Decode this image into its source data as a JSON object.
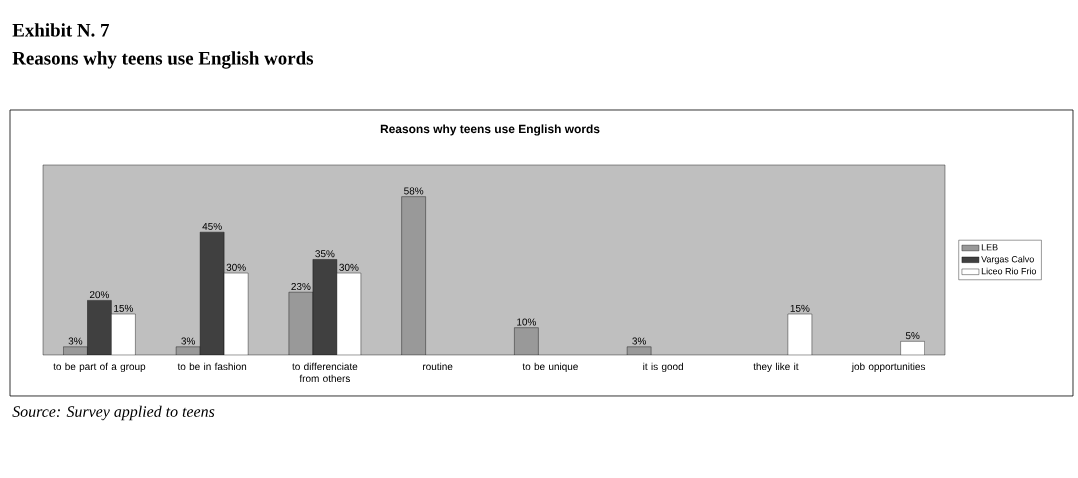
{
  "chart_data": {
    "type": "bar",
    "title": "Reasons why teens use English words",
    "annotations": [
      "Exhibit N. 7",
      "Reasons why teens use English words",
      "*Source: Survey applied to teens*"
    ],
    "categories": [
      "to be part of a group",
      "to be in fashion",
      "to differenciate from others",
      "routine",
      "to be unique",
      "it is good",
      "they like it",
      "job opportunities"
    ],
    "series": [
      {
        "name": "LEB",
        "color": "#999999",
        "values": [
          3,
          3,
          23,
          58,
          10,
          3,
          null,
          null
        ],
        "value_labels": [
          "3%",
          "3%",
          "23%",
          "58%",
          "10%",
          "3%",
          null,
          null
        ]
      },
      {
        "name": "Vargas Calvo",
        "color": "#404040",
        "values": [
          20,
          45,
          35,
          null,
          null,
          null,
          null,
          null
        ],
        "value_labels": [
          "20%",
          "45%",
          "35%",
          null,
          null,
          null,
          null,
          null
        ]
      },
      {
        "name": "Liceo Rio Frio",
        "color": "#ffffff",
        "values": [
          15,
          30,
          30,
          null,
          null,
          null,
          15,
          5
        ],
        "value_labels": [
          "15%",
          "30%",
          "30%",
          null,
          null,
          null,
          "15%",
          "5%"
        ]
      }
    ],
    "legend": "right"
  }
}
